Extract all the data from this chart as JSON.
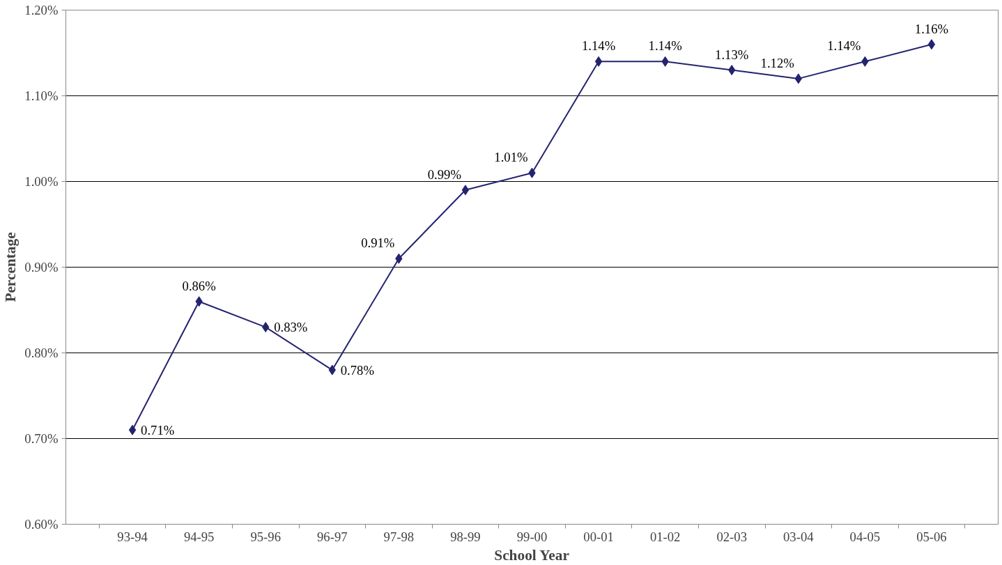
{
  "chart_data": {
    "type": "line",
    "xlabel": "School Year",
    "ylabel": "Percentage",
    "categories": [
      "93-94",
      "94-95",
      "95-96",
      "96-97",
      "97-98",
      "98-99",
      "99-00",
      "00-01",
      "01-02",
      "02-03",
      "03-04",
      "04-05",
      "05-06"
    ],
    "series": [
      {
        "color": "#232370",
        "values": [
          0.71,
          0.86,
          0.83,
          0.78,
          0.91,
          0.99,
          1.01,
          1.14,
          1.14,
          1.13,
          1.12,
          1.14,
          1.16
        ],
        "value_labels": [
          "0.71%",
          "0.86%",
          "0.83%",
          "0.78%",
          "0.91%",
          "0.99%",
          "1.01%",
          "1.14%",
          "1.14%",
          "1.13%",
          "1.12%",
          "1.14%",
          "1.16%"
        ]
      }
    ],
    "ylim": [
      0.6,
      1.2
    ],
    "yticks": [
      {
        "value": 0.6,
        "label": "0.60%"
      },
      {
        "value": 0.7,
        "label": "0.70%"
      },
      {
        "value": 0.8,
        "label": "0.80%"
      },
      {
        "value": 0.9,
        "label": "0.90%"
      },
      {
        "value": 1.0,
        "label": "1.00%"
      },
      {
        "value": 1.1,
        "label": "1.10%"
      },
      {
        "value": 1.2,
        "label": "1.20%"
      }
    ],
    "grid": "y",
    "marker": "diamond",
    "line_style": "solid"
  }
}
